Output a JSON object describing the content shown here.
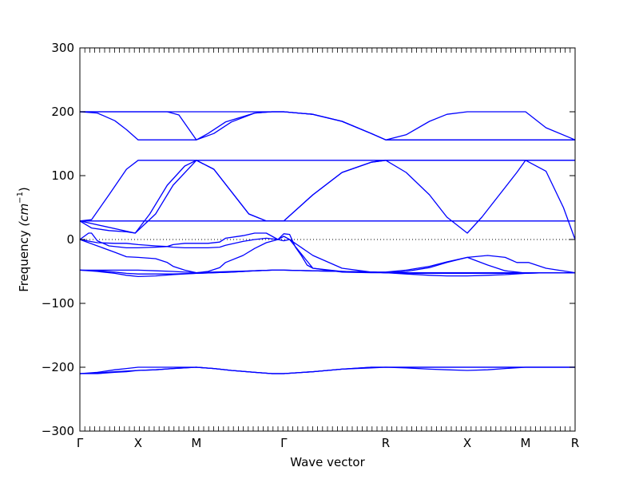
{
  "chart_data": {
    "type": "line",
    "title": "",
    "xlabel": "Wave vector",
    "ylabel_main": "Frequency ",
    "ylabel_unit": "(cm",
    "ylabel_exp": "−1",
    "ylabel_close": ")",
    "ylim": [
      -300,
      300
    ],
    "yticks": [
      300,
      200,
      100,
      0,
      -100,
      -200,
      -300
    ],
    "ytick_labels": [
      "300",
      "200",
      "100",
      "0",
      "−100",
      "−200",
      "−300"
    ],
    "xlim": [
      0,
      8.5
    ],
    "xticks": [
      0,
      1,
      2,
      3.5,
      5.25,
      6.65,
      7.65,
      8.5
    ],
    "xtick_labels": [
      "Γ",
      "X",
      "M",
      "Γ",
      "R",
      "X",
      "M",
      "R"
    ],
    "zero_line": true,
    "line_color": "#0000ff",
    "zero_line_color": "#000000",
    "series": [
      {
        "x": [
          0,
          0.4,
          0.6,
          0.8,
          1.0,
          1.5,
          2.0,
          2.5,
          3.0,
          3.3,
          3.5,
          4.0,
          4.5,
          5.0,
          5.25,
          5.6,
          6.0,
          6.3,
          6.65,
          7.0,
          7.3,
          7.65,
          8.0,
          8.5
        ],
        "y": [
          200,
          200,
          200,
          200,
          200,
          200,
          200,
          200,
          200,
          200,
          200,
          196,
          185,
          166,
          156,
          156,
          156,
          156,
          156,
          156,
          156,
          156,
          156,
          156
        ]
      },
      {
        "x": [
          0,
          0.3,
          0.6,
          0.8,
          1.0,
          1.5,
          1.8,
          2.0,
          2.2,
          2.5,
          3.0,
          3.3,
          3.5,
          4.0,
          4.5,
          5.0,
          5.25,
          5.6,
          6.0,
          6.3,
          6.65,
          7.0,
          7.3,
          7.65,
          8.0,
          8.5
        ],
        "y": [
          200,
          198,
          186,
          172,
          156,
          156,
          156,
          156,
          166,
          184,
          198,
          200,
          200,
          196,
          185,
          166,
          156,
          164,
          185,
          196,
          200,
          200,
          200,
          200,
          175,
          156
        ]
      },
      {
        "x": [
          0,
          0.3,
          0.6,
          0.8,
          1.0,
          1.5,
          1.7,
          2.0,
          2.3,
          2.6,
          3.0,
          3.3,
          3.5,
          4.0,
          4.5,
          5.0,
          5.25,
          5.6,
          6.0,
          6.3,
          6.65,
          7.0,
          7.3,
          7.65,
          8.0,
          8.5
        ],
        "y": [
          200,
          200,
          200,
          200,
          200,
          200,
          195,
          156,
          166,
          184,
          198,
          200,
          200,
          196,
          185,
          166,
          156,
          156,
          156,
          156,
          156,
          156,
          156,
          156,
          156,
          156
        ]
      },
      {
        "x": [
          0,
          0.2,
          0.5,
          0.8,
          1.0,
          1.5,
          2.0,
          2.5,
          3.0,
          3.3,
          3.5,
          4.0,
          4.5,
          5.0,
          5.25,
          5.6,
          6.0,
          6.3,
          6.65,
          7.0,
          7.3,
          7.65,
          8.0,
          8.5
        ],
        "y": [
          29,
          31,
          70,
          110,
          124,
          124,
          124,
          124,
          124,
          124,
          124,
          124,
          124,
          124,
          124,
          124,
          124,
          124,
          124,
          124,
          124,
          124,
          124,
          124
        ]
      },
      {
        "x": [
          0,
          0.3,
          0.6,
          0.8,
          0.95,
          1.2,
          1.5,
          1.8,
          2.0,
          2.3,
          2.6,
          2.9,
          3.2,
          3.5,
          4.0,
          4.5,
          5.0,
          5.25,
          5.6,
          6.0,
          6.3,
          6.65,
          6.9,
          7.2,
          7.5,
          7.65,
          8.0,
          8.3,
          8.5
        ],
        "y": [
          29,
          29,
          29,
          29,
          29,
          29,
          29,
          29,
          29,
          29,
          29,
          29,
          29,
          29,
          70,
          105,
          121,
          124,
          105,
          70,
          35,
          10,
          35,
          70,
          105,
          124,
          124,
          124,
          124
        ]
      },
      {
        "x": [
          0,
          0.2,
          0.5,
          0.8,
          0.95,
          1.2,
          1.5,
          1.8,
          2.0,
          2.3,
          2.6,
          2.9,
          3.2,
          3.5,
          4.0,
          4.5,
          5.0,
          5.25,
          5.6,
          6.0,
          6.3,
          6.65,
          6.9,
          7.2,
          7.5,
          7.65,
          8.0,
          8.3,
          8.5
        ],
        "y": [
          29,
          18,
          14,
          12,
          10,
          40,
          85,
          115,
          124,
          110,
          75,
          40,
          29,
          29,
          29,
          29,
          29,
          29,
          29,
          29,
          29,
          29,
          29,
          29,
          29,
          29,
          29,
          29,
          29
        ]
      },
      {
        "x": [
          0,
          0.95,
          1.3,
          1.6,
          2.0,
          2.3,
          2.6,
          2.9,
          3.2,
          3.5,
          4.0,
          4.5,
          5.0,
          5.25,
          5.6,
          6.0,
          6.3,
          6.65,
          7.0,
          7.3,
          7.5,
          7.65,
          8.0,
          8.3,
          8.5
        ],
        "y": [
          29,
          10,
          40,
          85,
          124,
          110,
          75,
          40,
          29,
          29,
          70,
          105,
          121,
          124,
          124,
          124,
          124,
          124,
          124,
          124,
          124,
          124,
          107,
          50,
          0
        ]
      },
      {
        "x": [
          0,
          0.15,
          0.2,
          0.3,
          0.5,
          0.8,
          1.0,
          1.3,
          1.5,
          1.6,
          1.8,
          2.0,
          2.2,
          2.4,
          2.5,
          2.8,
          3.0,
          3.2,
          3.3,
          3.4,
          3.5,
          3.6,
          3.7,
          3.8,
          3.9,
          4.0,
          4.5,
          5.0,
          5.25,
          5.6,
          6.0,
          6.3,
          6.65,
          7.0,
          7.3,
          7.5,
          7.6,
          7.65,
          8.0,
          8.5
        ],
        "y": [
          0,
          10,
          10,
          -2,
          -10,
          -13,
          -13,
          -12,
          -11,
          -8,
          -6,
          -6,
          -6,
          -4,
          2,
          6,
          10,
          10,
          5,
          0,
          9,
          8,
          -12,
          -25,
          -40,
          -45,
          -50,
          -51,
          -51,
          -48,
          -42,
          -35,
          -28,
          -40,
          -49,
          -51,
          -52,
          -52,
          -52,
          -52
        ]
      },
      {
        "x": [
          0,
          0.3,
          0.6,
          0.8,
          1.0,
          1.3,
          1.5,
          1.6,
          1.8,
          2.0,
          2.2,
          2.4,
          2.5,
          2.8,
          3.0,
          3.2,
          3.4,
          3.5,
          3.6,
          4.0,
          4.5,
          5.0,
          5.25,
          5.6,
          6.0,
          6.3,
          6.65,
          7.0,
          7.3,
          7.5,
          7.6,
          7.65,
          7.7,
          8.0,
          8.5
        ],
        "y": [
          0,
          -10,
          -20,
          -27,
          -28,
          -30,
          -36,
          -42,
          -48,
          -52,
          -50,
          -44,
          -36,
          -25,
          -14,
          -5,
          0,
          5,
          0,
          -45,
          -51,
          -52,
          -52,
          -52,
          -52,
          -52,
          -52,
          -52,
          -52,
          -52,
          -52,
          -52,
          -52,
          -52,
          -52
        ]
      },
      {
        "x": [
          0,
          0.3,
          0.6,
          0.8,
          1.0,
          1.3,
          1.5,
          1.6,
          1.8,
          2.0,
          2.2,
          2.4,
          2.5,
          2.8,
          3.0,
          3.2,
          3.4,
          3.5,
          3.6,
          4.0,
          4.5,
          5.0,
          5.25,
          5.6,
          6.0,
          6.3,
          6.65,
          7.0,
          7.3,
          7.5,
          7.6,
          7.65,
          7.7,
          8.0,
          8.5
        ],
        "y": [
          0,
          -5,
          -6,
          -6,
          -8,
          -10,
          -11,
          -12,
          -13,
          -13,
          -13,
          -12,
          -9,
          -3,
          0,
          2,
          0,
          -2,
          0,
          -25,
          -45,
          -51,
          -52,
          -50,
          -44,
          -36,
          -28,
          -25,
          -28,
          -36,
          -36,
          -36,
          -36,
          -45,
          -52
        ]
      },
      {
        "x": [
          0,
          0.3,
          0.6,
          0.8,
          1.0,
          1.3,
          1.6,
          2.0,
          2.3,
          2.6,
          3.0,
          3.3,
          3.5,
          4.0,
          4.5,
          5.0,
          5.25,
          5.6,
          6.0,
          6.3,
          6.65,
          7.0,
          7.3,
          7.65,
          8.0,
          8.5
        ],
        "y": [
          -48,
          -48,
          -48,
          -48,
          -48,
          -49,
          -50,
          -52,
          -51,
          -50,
          -49,
          -48,
          -48,
          -49,
          -50,
          -51,
          -52,
          -52,
          -52,
          -52,
          -52,
          -52,
          -52,
          -52,
          -52,
          -52
        ]
      },
      {
        "x": [
          0,
          0.3,
          0.6,
          0.8,
          1.0,
          1.3,
          1.6,
          2.0,
          2.3,
          2.6,
          3.0,
          3.3,
          3.5,
          4.0,
          4.5,
          5.0,
          5.25,
          5.6,
          6.0,
          6.3,
          6.65,
          7.0,
          7.3,
          7.65,
          8.0,
          8.5
        ],
        "y": [
          -48,
          -49,
          -51,
          -53,
          -54,
          -54,
          -54,
          -53,
          -52,
          -51,
          -49,
          -48,
          -48,
          -49,
          -50,
          -51,
          -52,
          -54,
          -56,
          -57,
          -57,
          -56,
          -55,
          -53,
          -52,
          -52
        ]
      },
      {
        "x": [
          0,
          0.3,
          0.6,
          0.8,
          1.0,
          1.3,
          1.6,
          2.0,
          2.3,
          2.6,
          3.0,
          3.3,
          3.5,
          4.0,
          4.5,
          5.0,
          5.25,
          5.6,
          6.0,
          6.3,
          6.65,
          7.0,
          7.3,
          7.65,
          8.0,
          8.5
        ],
        "y": [
          -48,
          -50,
          -53,
          -56,
          -58,
          -57,
          -55,
          -53,
          -52,
          -51,
          -49,
          -48,
          -48,
          -49,
          -50,
          -51,
          -52,
          -53,
          -53,
          -53,
          -53,
          -53,
          -53,
          -53,
          -52,
          -52
        ]
      },
      {
        "x": [
          0,
          0.3,
          0.6,
          0.8,
          1.0,
          1.3,
          1.6,
          2.0,
          2.3,
          2.6,
          3.0,
          3.3,
          3.5,
          4.0,
          4.5,
          5.0,
          5.25,
          5.6,
          6.0,
          6.3,
          6.65,
          7.0,
          7.3,
          7.65,
          8.0,
          8.5
        ],
        "y": [
          -210,
          -208,
          -204,
          -202,
          -200,
          -200,
          -200,
          -200,
          -202,
          -205,
          -208,
          -210,
          -210,
          -207,
          -203,
          -200,
          -200,
          -200,
          -200,
          -200,
          -200,
          -200,
          -200,
          -200,
          -200,
          -200
        ]
      },
      {
        "x": [
          0,
          0.3,
          0.6,
          0.8,
          1.0,
          1.3,
          1.6,
          2.0,
          2.3,
          2.6,
          3.0,
          3.3,
          3.5,
          4.0,
          4.5,
          5.0,
          5.25,
          5.6,
          6.0,
          6.3,
          6.65,
          7.0,
          7.3,
          7.65,
          8.0,
          8.5
        ],
        "y": [
          -210,
          -209,
          -207,
          -206,
          -205,
          -204,
          -202,
          -200,
          -202,
          -205,
          -208,
          -210,
          -210,
          -207,
          -203,
          -201,
          -200,
          -201,
          -203,
          -204,
          -205,
          -204,
          -202,
          -200,
          -200,
          -200
        ]
      },
      {
        "x": [
          0,
          0.3,
          0.6,
          0.8,
          1.0,
          1.3,
          1.6,
          2.0,
          2.3,
          2.6,
          3.0,
          3.3,
          3.5,
          4.0,
          4.5,
          5.0,
          5.25,
          5.6,
          6.0,
          6.3,
          6.65,
          7.0,
          7.3,
          7.65,
          8.0,
          8.5
        ],
        "y": [
          -210,
          -210,
          -208,
          -207,
          -205,
          -204,
          -202,
          -200,
          -202,
          -205,
          -208,
          -210,
          -210,
          -207,
          -203,
          -200,
          -200,
          -200,
          -200,
          -200,
          -200,
          -200,
          -200,
          -200,
          -200,
          -200
        ]
      }
    ]
  }
}
